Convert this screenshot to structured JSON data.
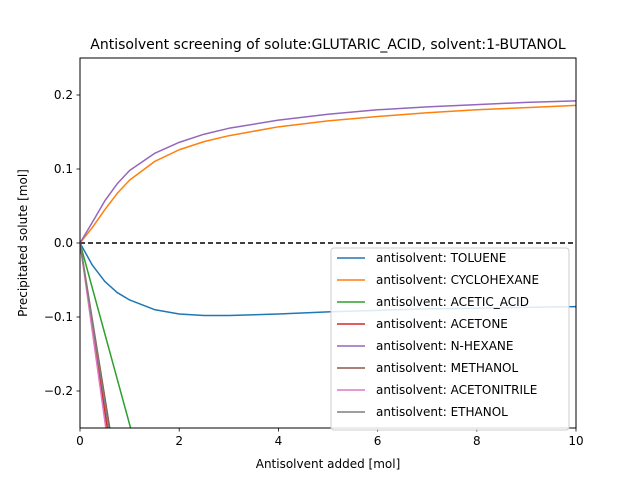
{
  "chart_data": {
    "type": "line",
    "title": "Antisolvent screening of solute:GLUTARIC_ACID, solvent:1-BUTANOL",
    "xlabel": "Antisolvent added [mol]",
    "ylabel": "Precipitated solute [mol]",
    "xlim": [
      0,
      10
    ],
    "ylim": [
      -0.25,
      0.25
    ],
    "xticks": [
      "0",
      "2",
      "4",
      "6",
      "8",
      "10"
    ],
    "yticks": [
      "−0.2",
      "−0.1",
      "0.0",
      "0.1",
      "0.2"
    ],
    "xtick_values": [
      0,
      2,
      4,
      6,
      8,
      10
    ],
    "ytick_values": [
      -0.2,
      -0.1,
      0.0,
      0.1,
      0.2
    ],
    "grid": false,
    "legend_position": "lower-right",
    "reference_line": {
      "y": 0.0,
      "style": "dashed",
      "color": "#000000"
    },
    "series": [
      {
        "name": "antisolvent: TOLUENE",
        "color": "#1f77b4",
        "x": [
          0,
          0.25,
          0.5,
          0.75,
          1.0,
          1.5,
          2.0,
          2.5,
          3.0,
          4.0,
          5.0,
          6.0,
          7.0,
          8.0,
          9.0,
          10.0
        ],
        "y": [
          0,
          -0.03,
          -0.052,
          -0.067,
          -0.077,
          -0.09,
          -0.096,
          -0.098,
          -0.098,
          -0.096,
          -0.093,
          -0.091,
          -0.089,
          -0.088,
          -0.087,
          -0.086
        ]
      },
      {
        "name": "antisolvent: CYCLOHEXANE",
        "color": "#ff7f0e",
        "x": [
          0,
          0.25,
          0.5,
          0.75,
          1.0,
          1.5,
          2.0,
          2.5,
          3.0,
          4.0,
          5.0,
          6.0,
          7.0,
          8.0,
          9.0,
          10.0
        ],
        "y": [
          0,
          0.021,
          0.045,
          0.067,
          0.085,
          0.11,
          0.126,
          0.137,
          0.145,
          0.157,
          0.165,
          0.171,
          0.176,
          0.18,
          0.183,
          0.186
        ]
      },
      {
        "name": "antisolvent: ACETIC_ACID",
        "color": "#2ca02c",
        "x": [
          0,
          1.02
        ],
        "y": [
          0,
          -0.25
        ]
      },
      {
        "name": "antisolvent: ACETONE",
        "color": "#d62728",
        "x": [
          0,
          0.55
        ],
        "y": [
          0,
          -0.25
        ]
      },
      {
        "name": "antisolvent: N-HEXANE",
        "color": "#9467bd",
        "x": [
          0,
          0.25,
          0.5,
          0.75,
          1.0,
          1.5,
          2.0,
          2.5,
          3.0,
          4.0,
          5.0,
          6.0,
          7.0,
          8.0,
          9.0,
          10.0
        ],
        "y": [
          0,
          0.028,
          0.057,
          0.08,
          0.098,
          0.121,
          0.136,
          0.147,
          0.155,
          0.166,
          0.174,
          0.18,
          0.184,
          0.187,
          0.19,
          0.192
        ]
      },
      {
        "name": "antisolvent: METHANOL",
        "color": "#8c564b",
        "x": [
          0,
          0.6
        ],
        "y": [
          0,
          -0.25
        ]
      },
      {
        "name": "antisolvent: ACETONITRILE",
        "color": "#e377c2",
        "x": [
          0,
          0.52
        ],
        "y": [
          0,
          -0.25
        ]
      },
      {
        "name": "antisolvent: ETHANOL",
        "color": "#7f7f7f",
        "x": [
          0,
          0.58
        ],
        "y": [
          0,
          -0.25
        ]
      }
    ]
  }
}
